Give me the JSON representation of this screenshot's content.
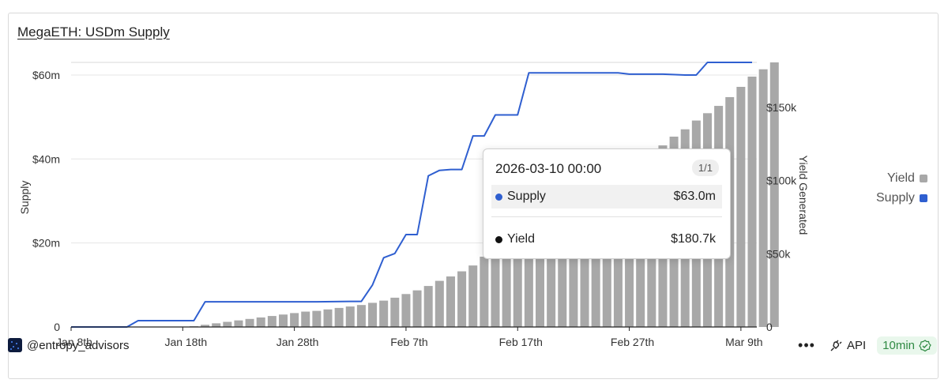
{
  "title": "MegaETH: USDm Supply",
  "chart_data": {
    "type": "line+bar",
    "title": "MegaETH: USDm Supply",
    "ylabel_left": "Supply",
    "ylabel_right": "Yield Generated",
    "y_left_ticks": [
      {
        "v": 0,
        "label": "0"
      },
      {
        "v": 20,
        "label": "$20m"
      },
      {
        "v": 40,
        "label": "$40m"
      },
      {
        "v": 60,
        "label": "$60m"
      }
    ],
    "y_right_ticks": [
      {
        "v": 0,
        "label": "0"
      },
      {
        "v": 50,
        "label": "$50k"
      },
      {
        "v": 100,
        "label": "$100k"
      },
      {
        "v": 150,
        "label": "$150k"
      }
    ],
    "y_left_range": [
      0,
      63
    ],
    "y_right_range": [
      0,
      180.7
    ],
    "x_range": [
      "2026-01-08",
      "2026-03-10"
    ],
    "x_ticks": [
      {
        "date": "2026-01-08",
        "label": "Jan 8th"
      },
      {
        "date": "2026-01-18",
        "label": "Jan 18th"
      },
      {
        "date": "2026-01-28",
        "label": "Jan 28th"
      },
      {
        "date": "2026-02-07",
        "label": "Feb 7th"
      },
      {
        "date": "2026-02-17",
        "label": "Feb 17th"
      },
      {
        "date": "2026-02-27",
        "label": "Feb 27th"
      },
      {
        "date": "2026-03-09",
        "label": "Mar 9th"
      }
    ],
    "grid": "horizontal",
    "legend_position": "right",
    "series": [
      {
        "name": "Supply",
        "type": "line",
        "axis": "left",
        "unit": "$m",
        "color": "#2f5fd0",
        "points": [
          [
            "2026-01-08",
            0
          ],
          [
            "2026-01-13",
            0
          ],
          [
            "2026-01-14",
            1.5
          ],
          [
            "2026-01-19",
            1.5
          ],
          [
            "2026-01-20",
            6
          ],
          [
            "2026-01-22",
            6
          ],
          [
            "2026-01-26",
            6
          ],
          [
            "2026-01-30",
            6
          ],
          [
            "2026-02-02",
            6.1
          ],
          [
            "2026-02-03",
            6.1
          ],
          [
            "2026-02-04",
            10
          ],
          [
            "2026-02-05",
            16.5
          ],
          [
            "2026-02-06",
            17.5
          ],
          [
            "2026-02-07",
            22
          ],
          [
            "2026-02-08",
            22
          ],
          [
            "2026-02-09",
            36
          ],
          [
            "2026-02-10",
            37.3
          ],
          [
            "2026-02-11",
            37.5
          ],
          [
            "2026-02-12",
            37.5
          ],
          [
            "2026-02-13",
            45.5
          ],
          [
            "2026-02-14",
            45.5
          ],
          [
            "2026-02-15",
            50.5
          ],
          [
            "2026-02-16",
            50.5
          ],
          [
            "2026-02-17",
            50.5
          ],
          [
            "2026-02-18",
            60.5
          ],
          [
            "2026-02-22",
            60.5
          ],
          [
            "2026-02-26",
            60.5
          ],
          [
            "2026-02-27",
            60.2
          ],
          [
            "2026-03-01",
            60.2
          ],
          [
            "2026-03-02",
            60.2
          ],
          [
            "2026-03-04",
            60
          ],
          [
            "2026-03-05",
            60
          ],
          [
            "2026-03-06",
            63
          ],
          [
            "2026-03-10",
            63
          ]
        ]
      },
      {
        "name": "Yield",
        "type": "bar",
        "axis": "right",
        "unit": "$k",
        "color": "#a8a8a8",
        "start_date": "2026-01-19",
        "values": [
          0.5,
          1.5,
          2.5,
          3.5,
          4.5,
          5.5,
          6.5,
          7.5,
          8.5,
          9.5,
          10.5,
          11,
          12,
          13,
          14,
          15,
          16.5,
          18,
          20,
          22.5,
          25,
          28,
          31.5,
          34.5,
          38,
          42,
          48,
          52,
          56,
          61,
          65,
          70,
          75,
          80,
          85,
          90,
          94,
          98,
          103,
          108,
          112,
          118,
          124,
          130,
          135,
          141,
          146,
          151,
          157,
          164,
          171,
          176,
          180.7
        ]
      }
    ],
    "tooltip": {
      "date": "2026-03-10 00:00",
      "page": "1/1",
      "rows": [
        {
          "name": "Supply",
          "value": "$63.0m",
          "color": "#2f5fd0"
        },
        {
          "name": "Yield",
          "value": "$180.7k",
          "color": "#111111"
        }
      ]
    }
  },
  "legend": [
    {
      "name": "Yield",
      "color": "#a8a8a8"
    },
    {
      "name": "Supply",
      "color": "#2f5fd0"
    }
  ],
  "footer": {
    "author": "@entropy_advisors",
    "more_icon": "ellipsis-icon",
    "api_icon": "plug-icon",
    "api_label": "API",
    "refresh_label": "10min",
    "refresh_icon": "check-badge-icon"
  }
}
